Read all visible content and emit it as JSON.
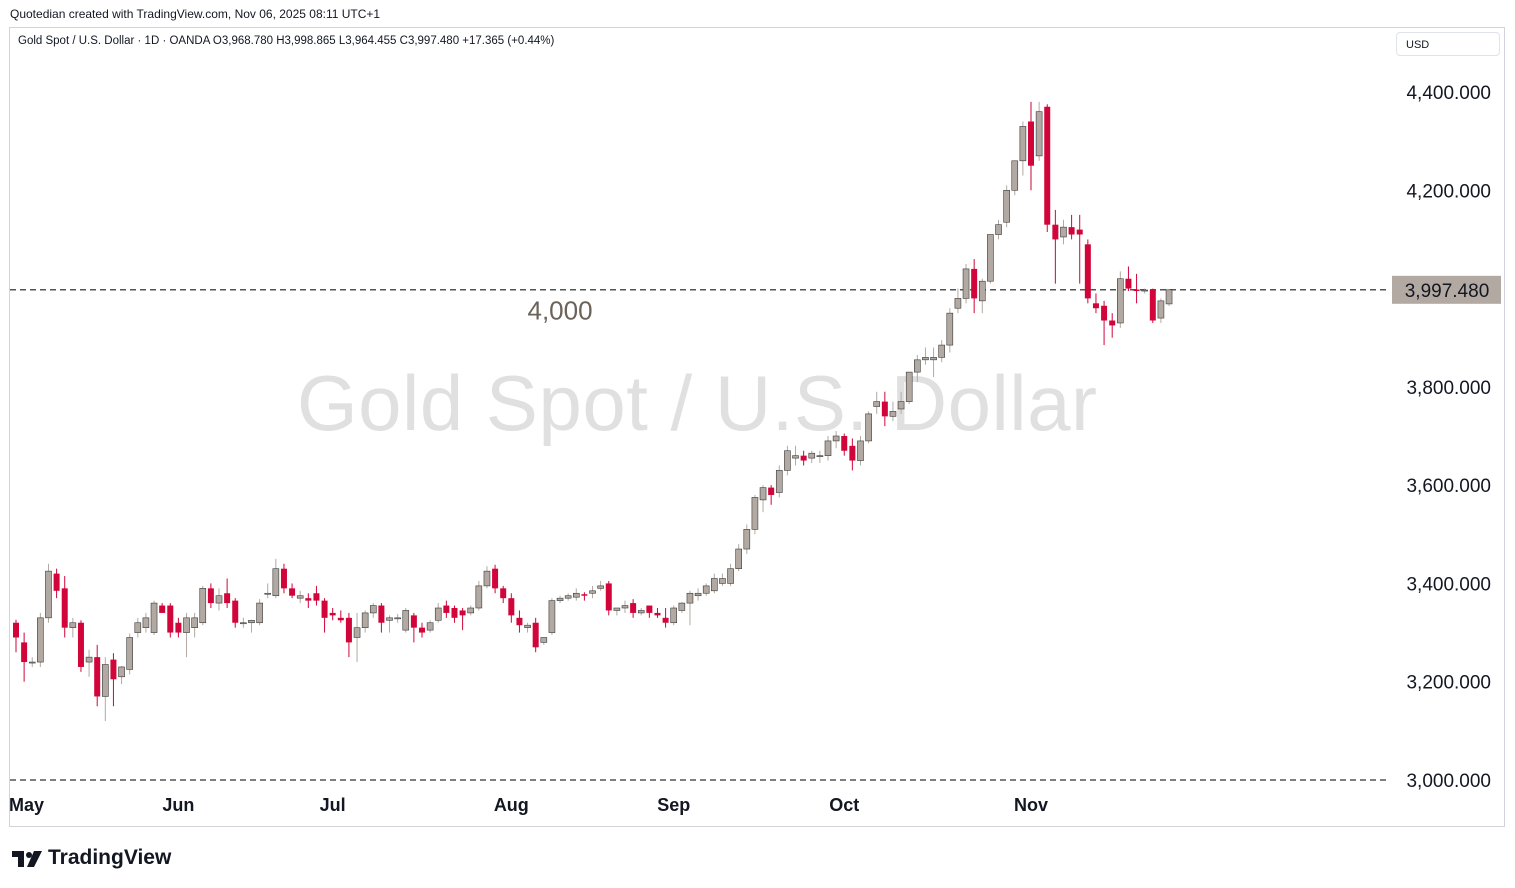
{
  "header": {
    "credit": "Quotedian created with TradingView.com, Nov 06, 2025 08:11 UTC+1"
  },
  "legend": {
    "text": "Gold Spot / U.S. Dollar · 1D · OANDA  O3,968.780  H3,998.865  L3,964.455  C3,997.480  +17.365 (+0.44%)"
  },
  "currency_label": "USD",
  "watermark": "Gold Spot / U.S. Dollar",
  "footer": {
    "brand": "TradingView"
  },
  "colors": {
    "up": "#b2aaa2",
    "down": "#d1053a",
    "price_tag": "#b2aaa2",
    "grid_dash": "#555555"
  },
  "chart_data": {
    "type": "candlestick",
    "symbol": "Gold Spot / U.S. Dollar",
    "interval": "1D",
    "ylim": [
      3000,
      4440
    ],
    "y_ticks": [
      "4,400.000",
      "4,200.000",
      "3,800.000",
      "3,600.000",
      "3,400.000",
      "3,200.000",
      "3,000.000"
    ],
    "y_tick_values": [
      4400,
      4200,
      3800,
      3600,
      3400,
      3200,
      3000
    ],
    "x_ticks": [
      {
        "label": "May",
        "index": 0
      },
      {
        "label": "Jun",
        "index": 20
      },
      {
        "label": "Jul",
        "index": 39
      },
      {
        "label": "Aug",
        "index": 61
      },
      {
        "label": "Sep",
        "index": 81
      },
      {
        "label": "Oct",
        "index": 102
      },
      {
        "label": "Nov",
        "index": 125
      }
    ],
    "last_price": 3997.48,
    "last_price_label": "3,997.480",
    "horizontal_lines": [
      {
        "value": 3997.48,
        "style": "dashed"
      },
      {
        "value": 3000,
        "style": "dashed"
      }
    ],
    "annotations": [
      {
        "text": "4,000",
        "value": 4000,
        "index": 67
      }
    ],
    "candles": [
      {
        "o": 3320,
        "h": 3326,
        "l": 3260,
        "c": 3290
      },
      {
        "o": 3280,
        "h": 3300,
        "l": 3200,
        "c": 3240
      },
      {
        "o": 3240,
        "h": 3250,
        "l": 3230,
        "c": 3240
      },
      {
        "o": 3240,
        "h": 3340,
        "l": 3230,
        "c": 3330
      },
      {
        "o": 3330,
        "h": 3440,
        "l": 3320,
        "c": 3425
      },
      {
        "o": 3420,
        "h": 3430,
        "l": 3370,
        "c": 3385
      },
      {
        "o": 3390,
        "h": 3415,
        "l": 3290,
        "c": 3310
      },
      {
        "o": 3310,
        "h": 3330,
        "l": 3290,
        "c": 3320
      },
      {
        "o": 3320,
        "h": 3325,
        "l": 3220,
        "c": 3230
      },
      {
        "o": 3240,
        "h": 3265,
        "l": 3210,
        "c": 3250
      },
      {
        "o": 3250,
        "h": 3275,
        "l": 3150,
        "c": 3170
      },
      {
        "o": 3170,
        "h": 3250,
        "l": 3120,
        "c": 3235
      },
      {
        "o": 3245,
        "h": 3258,
        "l": 3150,
        "c": 3205
      },
      {
        "o": 3210,
        "h": 3232,
        "l": 3195,
        "c": 3230
      },
      {
        "o": 3225,
        "h": 3298,
        "l": 3215,
        "c": 3290
      },
      {
        "o": 3300,
        "h": 3330,
        "l": 3290,
        "c": 3320
      },
      {
        "o": 3310,
        "h": 3340,
        "l": 3300,
        "c": 3330
      },
      {
        "o": 3300,
        "h": 3365,
        "l": 3295,
        "c": 3360
      },
      {
        "o": 3355,
        "h": 3360,
        "l": 3340,
        "c": 3340
      },
      {
        "o": 3355,
        "h": 3360,
        "l": 3290,
        "c": 3300
      },
      {
        "o": 3320,
        "h": 3330,
        "l": 3290,
        "c": 3300
      },
      {
        "o": 3300,
        "h": 3340,
        "l": 3250,
        "c": 3330
      },
      {
        "o": 3310,
        "h": 3340,
        "l": 3290,
        "c": 3330
      },
      {
        "o": 3320,
        "h": 3395,
        "l": 3315,
        "c": 3390
      },
      {
        "o": 3390,
        "h": 3400,
        "l": 3350,
        "c": 3360
      },
      {
        "o": 3360,
        "h": 3390,
        "l": 3345,
        "c": 3375
      },
      {
        "o": 3380,
        "h": 3410,
        "l": 3350,
        "c": 3360
      },
      {
        "o": 3365,
        "h": 3370,
        "l": 3310,
        "c": 3320
      },
      {
        "o": 3320,
        "h": 3330,
        "l": 3310,
        "c": 3320
      },
      {
        "o": 3320,
        "h": 3326,
        "l": 3300,
        "c": 3325
      },
      {
        "o": 3320,
        "h": 3368,
        "l": 3315,
        "c": 3360
      },
      {
        "o": 3380,
        "h": 3400,
        "l": 3370,
        "c": 3380
      },
      {
        "o": 3375,
        "h": 3450,
        "l": 3370,
        "c": 3430
      },
      {
        "o": 3430,
        "h": 3440,
        "l": 3380,
        "c": 3390
      },
      {
        "o": 3390,
        "h": 3400,
        "l": 3370,
        "c": 3375
      },
      {
        "o": 3370,
        "h": 3385,
        "l": 3360,
        "c": 3375
      },
      {
        "o": 3370,
        "h": 3380,
        "l": 3350,
        "c": 3365
      },
      {
        "o": 3380,
        "h": 3395,
        "l": 3355,
        "c": 3365
      },
      {
        "o": 3365,
        "h": 3370,
        "l": 3300,
        "c": 3330
      },
      {
        "o": 3340,
        "h": 3350,
        "l": 3325,
        "c": 3335
      },
      {
        "o": 3330,
        "h": 3345,
        "l": 3320,
        "c": 3325
      },
      {
        "o": 3330,
        "h": 3340,
        "l": 3250,
        "c": 3280
      },
      {
        "o": 3290,
        "h": 3340,
        "l": 3240,
        "c": 3310
      },
      {
        "o": 3310,
        "h": 3345,
        "l": 3300,
        "c": 3340
      },
      {
        "o": 3340,
        "h": 3360,
        "l": 3330,
        "c": 3355
      },
      {
        "o": 3355,
        "h": 3360,
        "l": 3300,
        "c": 3320
      },
      {
        "o": 3325,
        "h": 3335,
        "l": 3300,
        "c": 3330
      },
      {
        "o": 3330,
        "h": 3338,
        "l": 3320,
        "c": 3330
      },
      {
        "o": 3305,
        "h": 3350,
        "l": 3300,
        "c": 3345
      },
      {
        "o": 3335,
        "h": 3340,
        "l": 3280,
        "c": 3310
      },
      {
        "o": 3310,
        "h": 3320,
        "l": 3290,
        "c": 3300
      },
      {
        "o": 3305,
        "h": 3325,
        "l": 3300,
        "c": 3320
      },
      {
        "o": 3325,
        "h": 3360,
        "l": 3320,
        "c": 3350
      },
      {
        "o": 3355,
        "h": 3365,
        "l": 3330,
        "c": 3340
      },
      {
        "o": 3350,
        "h": 3355,
        "l": 3320,
        "c": 3330
      },
      {
        "o": 3345,
        "h": 3350,
        "l": 3305,
        "c": 3335
      },
      {
        "o": 3340,
        "h": 3355,
        "l": 3335,
        "c": 3350
      },
      {
        "o": 3350,
        "h": 3405,
        "l": 3345,
        "c": 3395
      },
      {
        "o": 3395,
        "h": 3435,
        "l": 3390,
        "c": 3425
      },
      {
        "o": 3430,
        "h": 3438,
        "l": 3380,
        "c": 3390
      },
      {
        "o": 3390,
        "h": 3395,
        "l": 3360,
        "c": 3370
      },
      {
        "o": 3370,
        "h": 3380,
        "l": 3320,
        "c": 3335
      },
      {
        "o": 3330,
        "h": 3345,
        "l": 3300,
        "c": 3315
      },
      {
        "o": 3310,
        "h": 3320,
        "l": 3300,
        "c": 3315
      },
      {
        "o": 3320,
        "h": 3330,
        "l": 3260,
        "c": 3270
      },
      {
        "o": 3280,
        "h": 3290,
        "l": 3275,
        "c": 3290
      },
      {
        "o": 3300,
        "h": 3370,
        "l": 3295,
        "c": 3365
      },
      {
        "o": 3365,
        "h": 3375,
        "l": 3360,
        "c": 3370
      },
      {
        "o": 3370,
        "h": 3380,
        "l": 3365,
        "c": 3375
      },
      {
        "o": 3372,
        "h": 3390,
        "l": 3365,
        "c": 3380
      },
      {
        "o": 3378,
        "h": 3382,
        "l": 3365,
        "c": 3375
      },
      {
        "o": 3380,
        "h": 3395,
        "l": 3370,
        "c": 3385
      },
      {
        "o": 3390,
        "h": 3405,
        "l": 3385,
        "c": 3395
      },
      {
        "o": 3400,
        "h": 3405,
        "l": 3335,
        "c": 3345
      },
      {
        "o": 3345,
        "h": 3350,
        "l": 3335,
        "c": 3350
      },
      {
        "o": 3350,
        "h": 3365,
        "l": 3340,
        "c": 3355
      },
      {
        "o": 3360,
        "h": 3368,
        "l": 3330,
        "c": 3340
      },
      {
        "o": 3340,
        "h": 3350,
        "l": 3335,
        "c": 3345
      },
      {
        "o": 3355,
        "h": 3355,
        "l": 3330,
        "c": 3340
      },
      {
        "o": 3340,
        "h": 3350,
        "l": 3330,
        "c": 3335
      },
      {
        "o": 3330,
        "h": 3350,
        "l": 3310,
        "c": 3320
      },
      {
        "o": 3320,
        "h": 3355,
        "l": 3315,
        "c": 3350
      },
      {
        "o": 3345,
        "h": 3362,
        "l": 3340,
        "c": 3360
      },
      {
        "o": 3360,
        "h": 3385,
        "l": 3315,
        "c": 3380
      },
      {
        "o": 3375,
        "h": 3390,
        "l": 3365,
        "c": 3380
      },
      {
        "o": 3380,
        "h": 3400,
        "l": 3375,
        "c": 3395
      },
      {
        "o": 3385,
        "h": 3420,
        "l": 3380,
        "c": 3410
      },
      {
        "o": 3400,
        "h": 3420,
        "l": 3395,
        "c": 3410
      },
      {
        "o": 3400,
        "h": 3440,
        "l": 3395,
        "c": 3430
      },
      {
        "o": 3430,
        "h": 3480,
        "l": 3425,
        "c": 3470
      },
      {
        "o": 3470,
        "h": 3520,
        "l": 3460,
        "c": 3510
      },
      {
        "o": 3510,
        "h": 3580,
        "l": 3500,
        "c": 3575
      },
      {
        "o": 3570,
        "h": 3600,
        "l": 3545,
        "c": 3595
      },
      {
        "o": 3595,
        "h": 3600,
        "l": 3560,
        "c": 3580
      },
      {
        "o": 3585,
        "h": 3640,
        "l": 3575,
        "c": 3630
      },
      {
        "o": 3630,
        "h": 3680,
        "l": 3620,
        "c": 3670
      },
      {
        "o": 3655,
        "h": 3680,
        "l": 3640,
        "c": 3660
      },
      {
        "o": 3660,
        "h": 3670,
        "l": 3640,
        "c": 3650
      },
      {
        "o": 3655,
        "h": 3670,
        "l": 3645,
        "c": 3665
      },
      {
        "o": 3660,
        "h": 3670,
        "l": 3645,
        "c": 3660
      },
      {
        "o": 3660,
        "h": 3700,
        "l": 3650,
        "c": 3690
      },
      {
        "o": 3690,
        "h": 3710,
        "l": 3675,
        "c": 3700
      },
      {
        "o": 3700,
        "h": 3705,
        "l": 3660,
        "c": 3670
      },
      {
        "o": 3680,
        "h": 3695,
        "l": 3630,
        "c": 3650
      },
      {
        "o": 3650,
        "h": 3700,
        "l": 3640,
        "c": 3690
      },
      {
        "o": 3690,
        "h": 3750,
        "l": 3685,
        "c": 3745
      },
      {
        "o": 3760,
        "h": 3790,
        "l": 3745,
        "c": 3770
      },
      {
        "o": 3770,
        "h": 3790,
        "l": 3720,
        "c": 3740
      },
      {
        "o": 3740,
        "h": 3770,
        "l": 3730,
        "c": 3750
      },
      {
        "o": 3755,
        "h": 3790,
        "l": 3745,
        "c": 3770
      },
      {
        "o": 3770,
        "h": 3830,
        "l": 3765,
        "c": 3830
      },
      {
        "o": 3830,
        "h": 3865,
        "l": 3810,
        "c": 3855
      },
      {
        "o": 3855,
        "h": 3880,
        "l": 3845,
        "c": 3860
      },
      {
        "o": 3855,
        "h": 3880,
        "l": 3820,
        "c": 3860
      },
      {
        "o": 3860,
        "h": 3895,
        "l": 3850,
        "c": 3885
      },
      {
        "o": 3885,
        "h": 3960,
        "l": 3870,
        "c": 3950
      },
      {
        "o": 3960,
        "h": 4000,
        "l": 3950,
        "c": 3980
      },
      {
        "o": 3980,
        "h": 4050,
        "l": 3970,
        "c": 4040
      },
      {
        "o": 4040,
        "h": 4060,
        "l": 3950,
        "c": 3980
      },
      {
        "o": 3975,
        "h": 4020,
        "l": 3950,
        "c": 4015
      },
      {
        "o": 4015,
        "h": 4110,
        "l": 4010,
        "c": 4110
      },
      {
        "o": 4110,
        "h": 4140,
        "l": 4100,
        "c": 4130
      },
      {
        "o": 4135,
        "h": 4210,
        "l": 4125,
        "c": 4200
      },
      {
        "o": 4200,
        "h": 4260,
        "l": 4190,
        "c": 4260
      },
      {
        "o": 4260,
        "h": 4340,
        "l": 4230,
        "c": 4330
      },
      {
        "o": 4340,
        "h": 4380,
        "l": 4200,
        "c": 4250
      },
      {
        "o": 4270,
        "h": 4380,
        "l": 4260,
        "c": 4360
      },
      {
        "o": 4370,
        "h": 4375,
        "l": 4115,
        "c": 4130
      },
      {
        "o": 4130,
        "h": 4160,
        "l": 4010,
        "c": 4100
      },
      {
        "o": 4105,
        "h": 4140,
        "l": 4090,
        "c": 4125
      },
      {
        "o": 4125,
        "h": 4150,
        "l": 4100,
        "c": 4110
      },
      {
        "o": 4120,
        "h": 4150,
        "l": 4010,
        "c": 4110
      },
      {
        "o": 4090,
        "h": 4100,
        "l": 3970,
        "c": 3980
      },
      {
        "o": 3970,
        "h": 3990,
        "l": 3950,
        "c": 3960
      },
      {
        "o": 3965,
        "h": 3975,
        "l": 3885,
        "c": 3935
      },
      {
        "o": 3935,
        "h": 3950,
        "l": 3900,
        "c": 3925
      },
      {
        "o": 3930,
        "h": 4035,
        "l": 3920,
        "c": 4020
      },
      {
        "o": 4020,
        "h": 4045,
        "l": 3995,
        "c": 4000
      },
      {
        "o": 3998,
        "h": 4030,
        "l": 3970,
        "c": 3995
      },
      {
        "o": 3997,
        "h": 4000,
        "l": 3990,
        "c": 3997
      },
      {
        "o": 3997,
        "h": 4000,
        "l": 3930,
        "c": 3935
      },
      {
        "o": 3940,
        "h": 3980,
        "l": 3930,
        "c": 3975
      },
      {
        "o": 3968.78,
        "h": 3998.865,
        "l": 3964.455,
        "c": 3997.48
      }
    ]
  }
}
